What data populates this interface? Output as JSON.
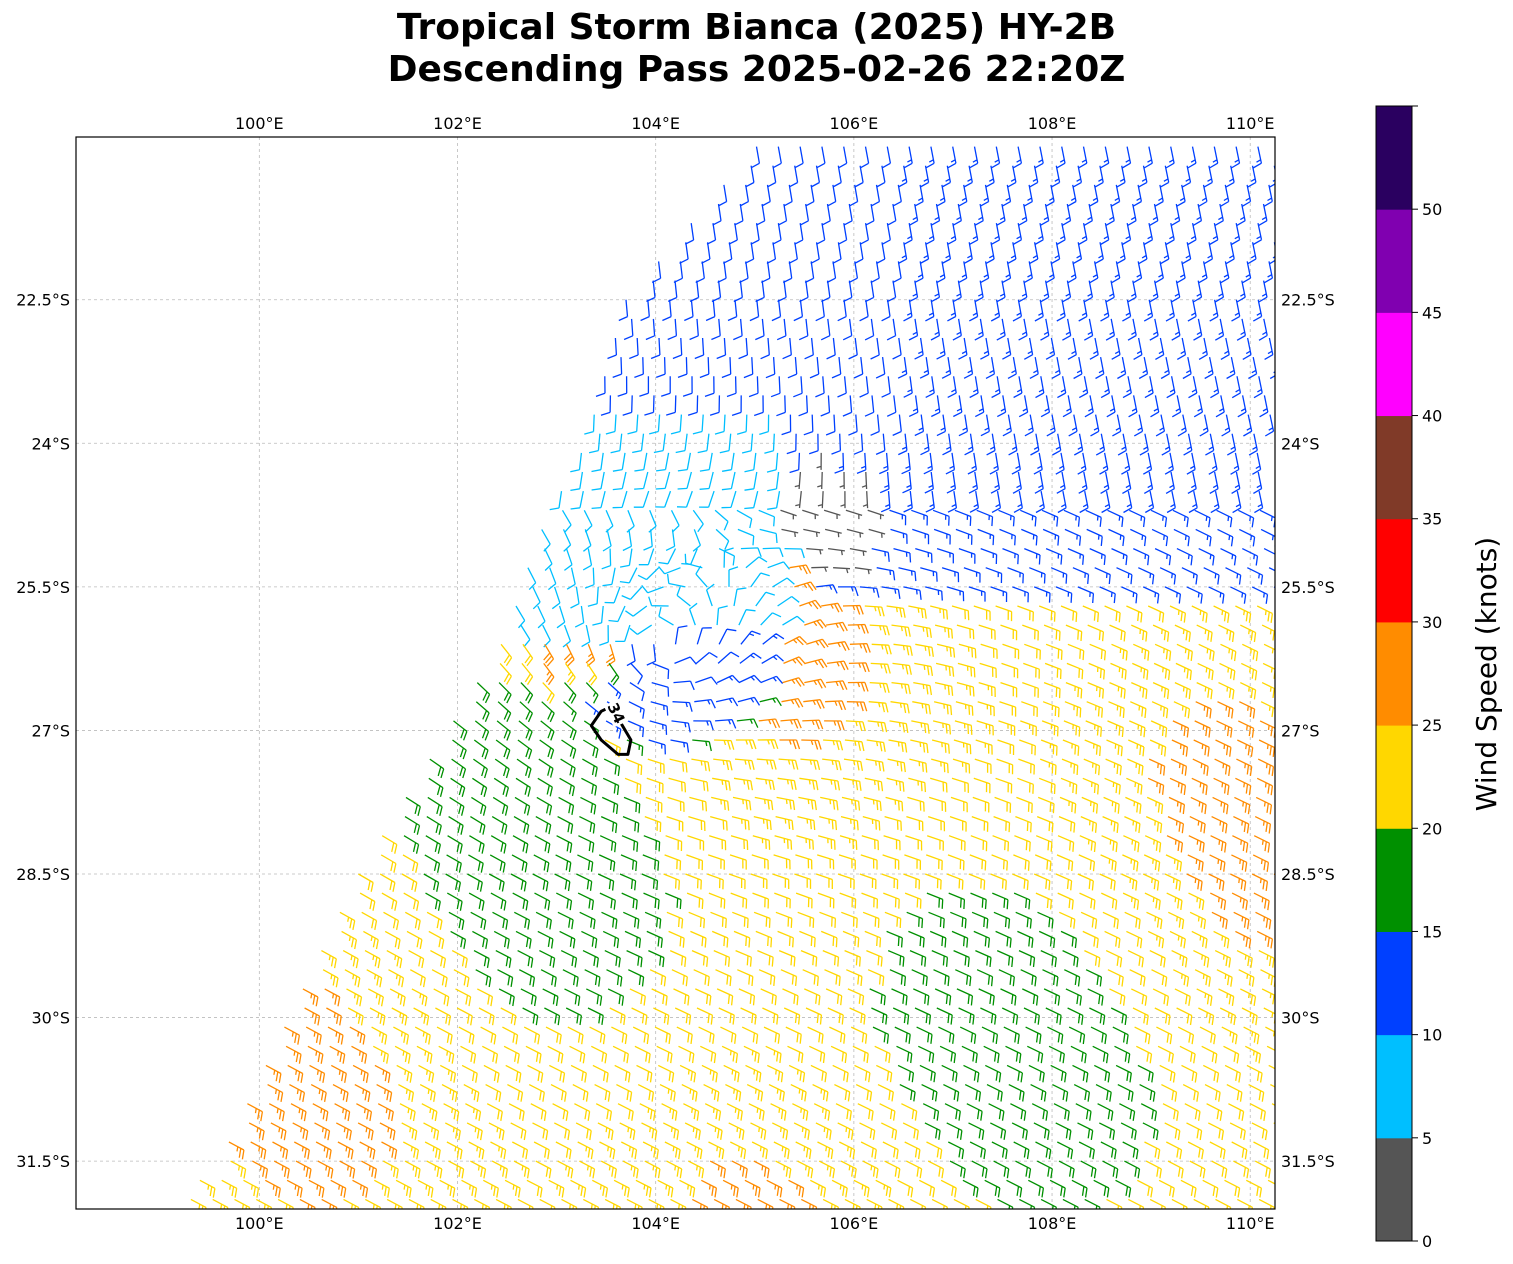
{
  "title": {
    "line1": "Tropical Storm Bianca (2025) HY-2B",
    "line2": "Descending Pass 2025-02-26 22:20Z"
  },
  "map": {
    "lon_range": [
      98.15,
      110.25
    ],
    "lat_range": [
      -32.0,
      -20.8
    ],
    "lon_ticks": [
      {
        "value": 100,
        "label": "100°E"
      },
      {
        "value": 102,
        "label": "102°E"
      },
      {
        "value": 104,
        "label": "104°E"
      },
      {
        "value": 106,
        "label": "106°E"
      },
      {
        "value": 108,
        "label": "108°E"
      },
      {
        "value": 110,
        "label": "110°E"
      }
    ],
    "lat_ticks": [
      {
        "value": -22.5,
        "label": "22.5°S"
      },
      {
        "value": -24,
        "label": "24°S"
      },
      {
        "value": -25.5,
        "label": "25.5°S"
      },
      {
        "value": -27,
        "label": "27°S"
      },
      {
        "value": -28.5,
        "label": "28.5°S"
      },
      {
        "value": -30,
        "label": "30°S"
      },
      {
        "value": -31.5,
        "label": "31.5°S"
      }
    ],
    "gridlines": true,
    "storm_center": {
      "lon": 104.05,
      "lat": -26.1
    },
    "contour": {
      "label": "34",
      "level_kt": 34
    }
  },
  "colorbar": {
    "label": "Wind Speed (knots)",
    "ticks": [
      "0",
      "5",
      "10",
      "15",
      "20",
      "25",
      "30",
      "35",
      "40",
      "45",
      "50"
    ],
    "bins": [
      {
        "from": 0,
        "to": 5,
        "color": "#555555"
      },
      {
        "from": 5,
        "to": 10,
        "color": "#00bfff"
      },
      {
        "from": 10,
        "to": 15,
        "color": "#0040ff"
      },
      {
        "from": 15,
        "to": 20,
        "color": "#009000"
      },
      {
        "from": 20,
        "to": 25,
        "color": "#ffd700"
      },
      {
        "from": 25,
        "to": 30,
        "color": "#ff8c00"
      },
      {
        "from": 30,
        "to": 35,
        "color": "#ff0000"
      },
      {
        "from": 35,
        "to": 40,
        "color": "#803a28"
      },
      {
        "from": 40,
        "to": 45,
        "color": "#ff00ff"
      },
      {
        "from": 45,
        "to": 50,
        "color": "#8000b0"
      },
      {
        "from": 50,
        "to": 55,
        "color": "#2a0060"
      }
    ]
  }
}
